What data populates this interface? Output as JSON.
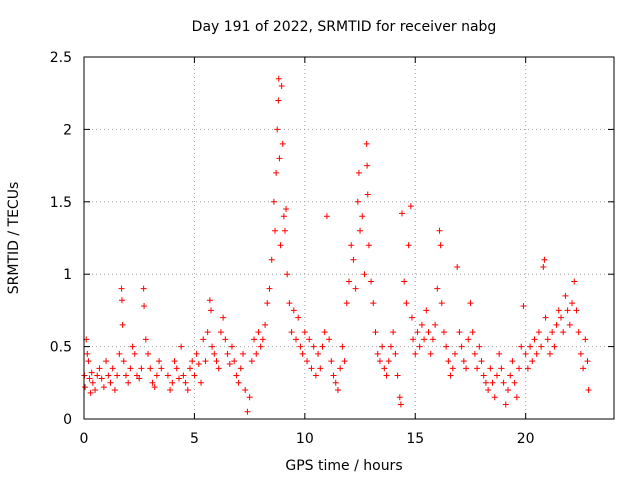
{
  "chart_data": {
    "type": "scatter",
    "title": "Day 191 of 2022, SRMTID for receiver nabg",
    "xlabel": "GPS time / hours",
    "ylabel": "SRMTID / TECUs",
    "xlim": [
      0,
      24
    ],
    "ylim": [
      0,
      2.5
    ],
    "x_ticks": [
      0,
      5,
      10,
      15,
      20
    ],
    "x_tick_labels": [
      "0",
      "5",
      "10",
      "15",
      "20"
    ],
    "y_ticks": [
      0,
      0.5,
      1,
      1.5,
      2,
      2.5
    ],
    "y_tick_labels": [
      "0",
      "0.5",
      "1",
      "1.5",
      "2",
      "2.5"
    ],
    "grid": true,
    "marker": "plus",
    "color": "#ff0000",
    "series": [
      {
        "name": "SRMTID",
        "points": [
          [
            0.02,
            0.3
          ],
          [
            0.05,
            0.22
          ],
          [
            0.1,
            0.55
          ],
          [
            0.15,
            0.45
          ],
          [
            0.2,
            0.4
          ],
          [
            0.25,
            0.28
          ],
          [
            0.3,
            0.18
          ],
          [
            0.35,
            0.32
          ],
          [
            0.4,
            0.25
          ],
          [
            0.5,
            0.2
          ],
          [
            0.6,
            0.3
          ],
          [
            0.7,
            0.35
          ],
          [
            0.8,
            0.28
          ],
          [
            0.9,
            0.22
          ],
          [
            1.0,
            0.4
          ],
          [
            1.1,
            0.3
          ],
          [
            1.2,
            0.25
          ],
          [
            1.3,
            0.35
          ],
          [
            1.4,
            0.2
          ],
          [
            1.5,
            0.3
          ],
          [
            1.6,
            0.45
          ],
          [
            1.7,
            0.9
          ],
          [
            1.72,
            0.82
          ],
          [
            1.75,
            0.65
          ],
          [
            1.8,
            0.4
          ],
          [
            1.9,
            0.3
          ],
          [
            2.0,
            0.25
          ],
          [
            2.1,
            0.35
          ],
          [
            2.2,
            0.5
          ],
          [
            2.3,
            0.45
          ],
          [
            2.4,
            0.3
          ],
          [
            2.5,
            0.28
          ],
          [
            2.6,
            0.35
          ],
          [
            2.7,
            0.9
          ],
          [
            2.72,
            0.78
          ],
          [
            2.8,
            0.55
          ],
          [
            2.9,
            0.45
          ],
          [
            3.0,
            0.35
          ],
          [
            3.1,
            0.25
          ],
          [
            3.2,
            0.22
          ],
          [
            3.3,
            0.3
          ],
          [
            3.4,
            0.4
          ],
          [
            3.5,
            0.35
          ],
          [
            3.8,
            0.3
          ],
          [
            3.9,
            0.2
          ],
          [
            4.0,
            0.25
          ],
          [
            4.1,
            0.4
          ],
          [
            4.2,
            0.35
          ],
          [
            4.3,
            0.28
          ],
          [
            4.4,
            0.5
          ],
          [
            4.5,
            0.3
          ],
          [
            4.6,
            0.25
          ],
          [
            4.7,
            0.2
          ],
          [
            4.8,
            0.35
          ],
          [
            4.9,
            0.4
          ],
          [
            5.0,
            0.3
          ],
          [
            5.1,
            0.45
          ],
          [
            5.2,
            0.38
          ],
          [
            5.3,
            0.25
          ],
          [
            5.4,
            0.55
          ],
          [
            5.5,
            0.4
          ],
          [
            5.6,
            0.6
          ],
          [
            5.7,
            0.82
          ],
          [
            5.75,
            0.75
          ],
          [
            5.8,
            0.5
          ],
          [
            5.9,
            0.45
          ],
          [
            6.0,
            0.4
          ],
          [
            6.1,
            0.35
          ],
          [
            6.2,
            0.6
          ],
          [
            6.3,
            0.7
          ],
          [
            6.4,
            0.55
          ],
          [
            6.5,
            0.45
          ],
          [
            6.6,
            0.38
          ],
          [
            6.7,
            0.5
          ],
          [
            6.8,
            0.4
          ],
          [
            6.9,
            0.3
          ],
          [
            7.0,
            0.25
          ],
          [
            7.1,
            0.35
          ],
          [
            7.2,
            0.45
          ],
          [
            7.3,
            0.2
          ],
          [
            7.4,
            0.05
          ],
          [
            7.5,
            0.15
          ],
          [
            7.6,
            0.4
          ],
          [
            7.7,
            0.55
          ],
          [
            7.8,
            0.45
          ],
          [
            7.9,
            0.6
          ],
          [
            8.0,
            0.5
          ],
          [
            8.1,
            0.55
          ],
          [
            8.2,
            0.65
          ],
          [
            8.3,
            0.8
          ],
          [
            8.4,
            0.9
          ],
          [
            8.5,
            1.1
          ],
          [
            8.6,
            1.5
          ],
          [
            8.65,
            1.3
          ],
          [
            8.7,
            1.7
          ],
          [
            8.75,
            2.0
          ],
          [
            8.8,
            2.2
          ],
          [
            8.82,
            2.35
          ],
          [
            8.85,
            1.8
          ],
          [
            8.9,
            1.2
          ],
          [
            8.95,
            2.3
          ],
          [
            9.0,
            1.9
          ],
          [
            9.05,
            1.4
          ],
          [
            9.1,
            1.3
          ],
          [
            9.15,
            1.45
          ],
          [
            9.2,
            1.0
          ],
          [
            9.3,
            0.8
          ],
          [
            9.4,
            0.6
          ],
          [
            9.5,
            0.75
          ],
          [
            9.6,
            0.55
          ],
          [
            9.7,
            0.7
          ],
          [
            9.8,
            0.5
          ],
          [
            9.9,
            0.45
          ],
          [
            10.0,
            0.6
          ],
          [
            10.1,
            0.4
          ],
          [
            10.2,
            0.55
          ],
          [
            10.3,
            0.35
          ],
          [
            10.4,
            0.5
          ],
          [
            10.5,
            0.3
          ],
          [
            10.6,
            0.45
          ],
          [
            10.7,
            0.35
          ],
          [
            10.8,
            0.5
          ],
          [
            10.9,
            0.6
          ],
          [
            11.0,
            1.4
          ],
          [
            11.1,
            0.55
          ],
          [
            11.2,
            0.4
          ],
          [
            11.3,
            0.3
          ],
          [
            11.4,
            0.25
          ],
          [
            11.5,
            0.2
          ],
          [
            11.6,
            0.35
          ],
          [
            11.7,
            0.5
          ],
          [
            11.8,
            0.4
          ],
          [
            11.9,
            0.8
          ],
          [
            12.0,
            0.95
          ],
          [
            12.1,
            1.2
          ],
          [
            12.2,
            1.1
          ],
          [
            12.3,
            0.9
          ],
          [
            12.4,
            1.5
          ],
          [
            12.45,
            1.7
          ],
          [
            12.5,
            1.3
          ],
          [
            12.6,
            1.4
          ],
          [
            12.7,
            1.0
          ],
          [
            12.8,
            1.9
          ],
          [
            12.82,
            1.75
          ],
          [
            12.85,
            1.55
          ],
          [
            12.9,
            1.2
          ],
          [
            13.0,
            0.95
          ],
          [
            13.1,
            0.8
          ],
          [
            13.2,
            0.6
          ],
          [
            13.3,
            0.45
          ],
          [
            13.4,
            0.4
          ],
          [
            13.5,
            0.5
          ],
          [
            13.6,
            0.35
          ],
          [
            13.7,
            0.3
          ],
          [
            13.8,
            0.4
          ],
          [
            13.9,
            0.5
          ],
          [
            14.0,
            0.6
          ],
          [
            14.1,
            0.45
          ],
          [
            14.2,
            0.3
          ],
          [
            14.3,
            0.15
          ],
          [
            14.35,
            0.1
          ],
          [
            14.4,
            1.42
          ],
          [
            14.5,
            0.95
          ],
          [
            14.6,
            0.8
          ],
          [
            14.7,
            1.2
          ],
          [
            14.8,
            1.47
          ],
          [
            14.85,
            0.7
          ],
          [
            14.9,
            0.55
          ],
          [
            15.0,
            0.45
          ],
          [
            15.1,
            0.6
          ],
          [
            15.2,
            0.5
          ],
          [
            15.3,
            0.65
          ],
          [
            15.4,
            0.55
          ],
          [
            15.5,
            0.75
          ],
          [
            15.6,
            0.6
          ],
          [
            15.7,
            0.45
          ],
          [
            15.8,
            0.55
          ],
          [
            15.9,
            0.65
          ],
          [
            16.0,
            0.9
          ],
          [
            16.1,
            1.3
          ],
          [
            16.15,
            1.2
          ],
          [
            16.2,
            0.8
          ],
          [
            16.3,
            0.6
          ],
          [
            16.4,
            0.5
          ],
          [
            16.5,
            0.4
          ],
          [
            16.6,
            0.3
          ],
          [
            16.7,
            0.35
          ],
          [
            16.8,
            0.45
          ],
          [
            16.9,
            1.05
          ],
          [
            17.0,
            0.6
          ],
          [
            17.1,
            0.5
          ],
          [
            17.2,
            0.4
          ],
          [
            17.3,
            0.35
          ],
          [
            17.4,
            0.55
          ],
          [
            17.5,
            0.8
          ],
          [
            17.6,
            0.6
          ],
          [
            17.7,
            0.45
          ],
          [
            17.8,
            0.35
          ],
          [
            17.9,
            0.5
          ],
          [
            18.0,
            0.4
          ],
          [
            18.1,
            0.3
          ],
          [
            18.2,
            0.25
          ],
          [
            18.3,
            0.2
          ],
          [
            18.4,
            0.35
          ],
          [
            18.5,
            0.25
          ],
          [
            18.6,
            0.15
          ],
          [
            18.7,
            0.3
          ],
          [
            18.8,
            0.45
          ],
          [
            18.9,
            0.35
          ],
          [
            19.0,
            0.25
          ],
          [
            19.1,
            0.1
          ],
          [
            19.2,
            0.2
          ],
          [
            19.3,
            0.3
          ],
          [
            19.4,
            0.4
          ],
          [
            19.5,
            0.25
          ],
          [
            19.6,
            0.15
          ],
          [
            19.7,
            0.35
          ],
          [
            19.8,
            0.5
          ],
          [
            19.9,
            0.78
          ],
          [
            20.0,
            0.45
          ],
          [
            20.1,
            0.35
          ],
          [
            20.2,
            0.5
          ],
          [
            20.3,
            0.4
          ],
          [
            20.4,
            0.55
          ],
          [
            20.5,
            0.45
          ],
          [
            20.6,
            0.6
          ],
          [
            20.7,
            0.5
          ],
          [
            20.8,
            1.05
          ],
          [
            20.85,
            1.1
          ],
          [
            20.9,
            0.7
          ],
          [
            21.0,
            0.55
          ],
          [
            21.1,
            0.45
          ],
          [
            21.2,
            0.6
          ],
          [
            21.3,
            0.5
          ],
          [
            21.4,
            0.65
          ],
          [
            21.5,
            0.75
          ],
          [
            21.6,
            0.7
          ],
          [
            21.7,
            0.6
          ],
          [
            21.8,
            0.85
          ],
          [
            21.9,
            0.75
          ],
          [
            22.0,
            0.65
          ],
          [
            22.1,
            0.8
          ],
          [
            22.2,
            0.95
          ],
          [
            22.3,
            0.75
          ],
          [
            22.4,
            0.6
          ],
          [
            22.5,
            0.45
          ],
          [
            22.6,
            0.35
          ],
          [
            22.7,
            0.55
          ],
          [
            22.8,
            0.4
          ],
          [
            22.85,
            0.2
          ]
        ]
      }
    ]
  }
}
